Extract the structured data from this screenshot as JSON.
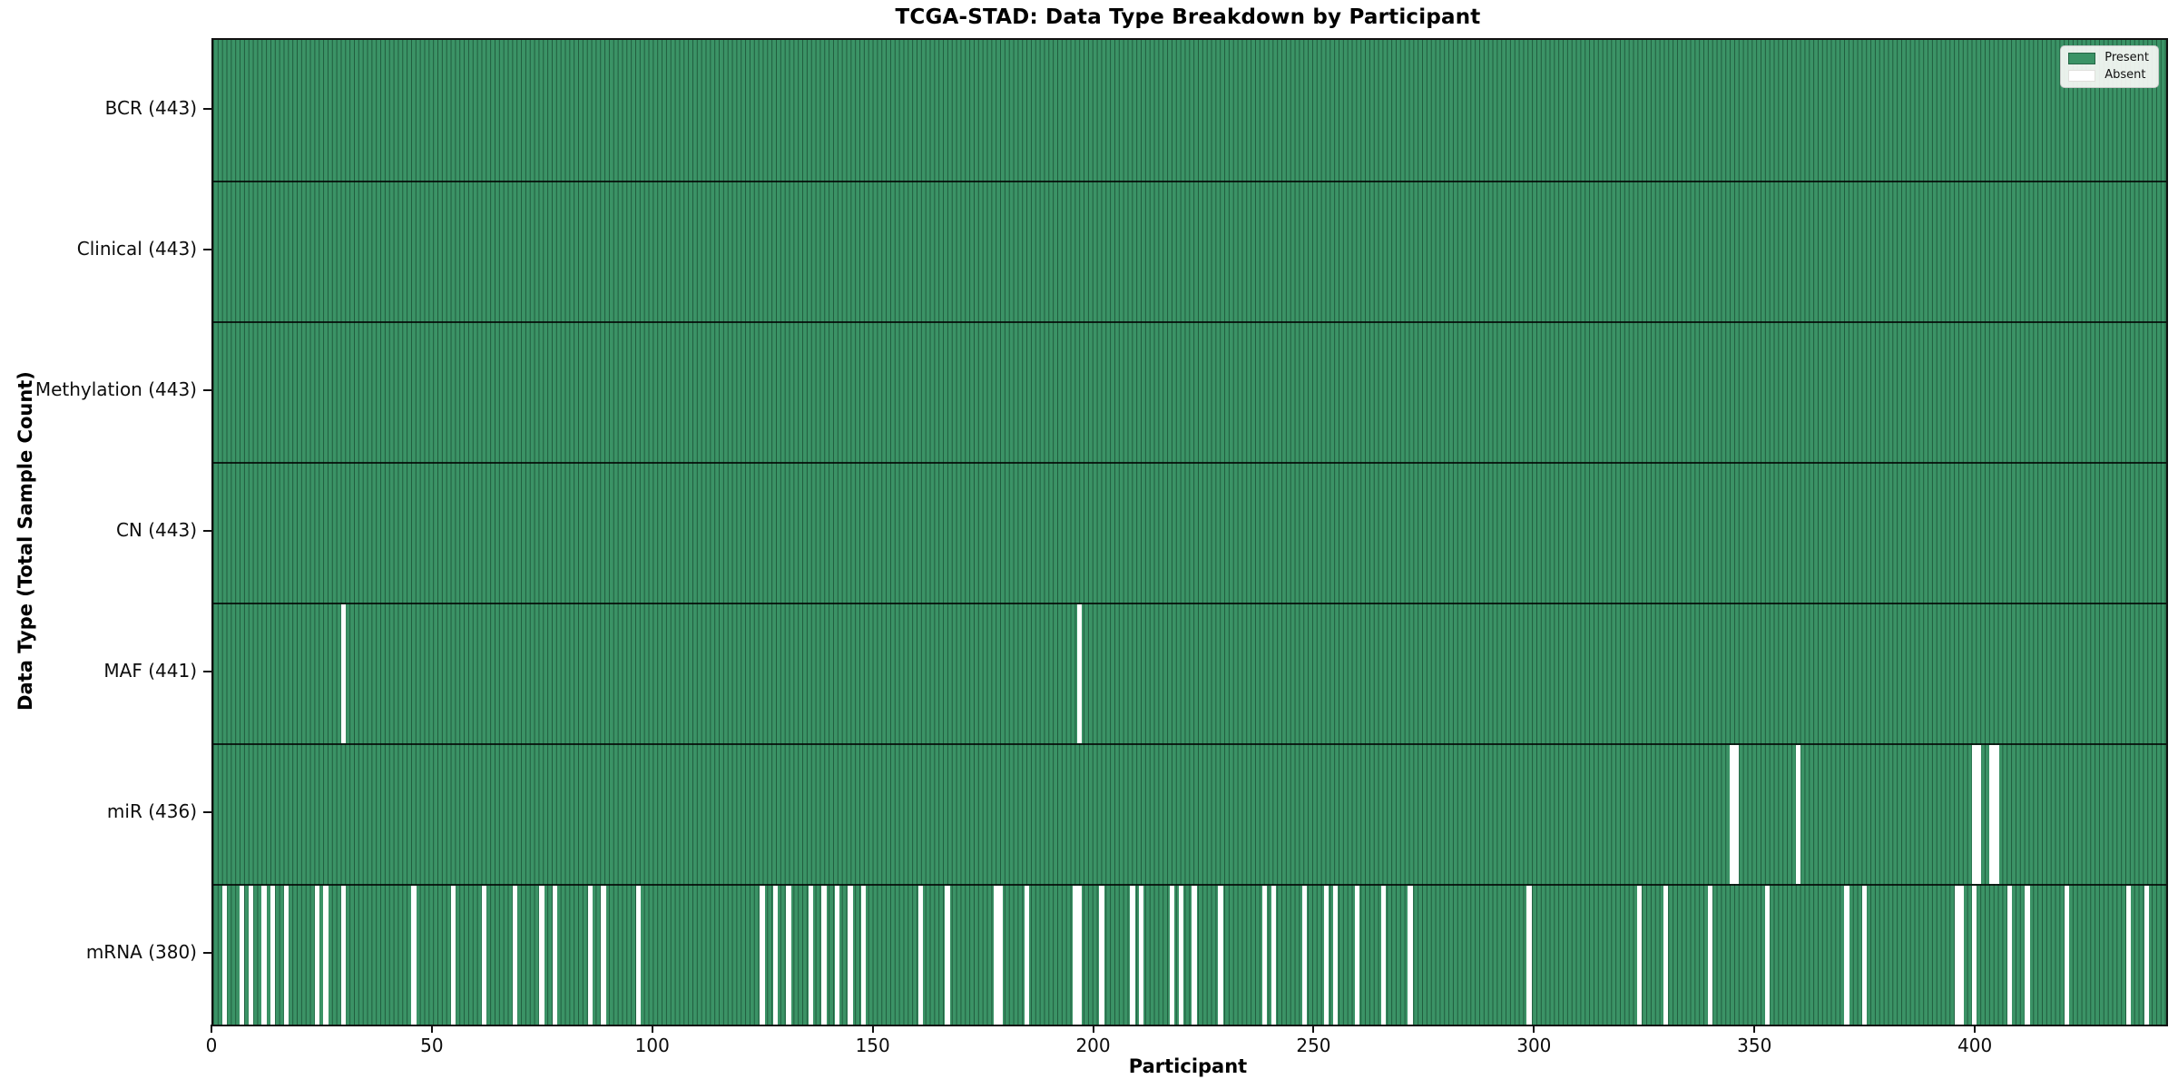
{
  "chart_data": {
    "type": "heatmap",
    "title": "TCGA-STAD: Data Type Breakdown by Participant",
    "xlabel": "Participant",
    "ylabel": "Data Type (Total Sample Count)",
    "n_participants": 443,
    "x_ticks": [
      0,
      50,
      100,
      150,
      200,
      250,
      300,
      350,
      400
    ],
    "grid": false,
    "legend": {
      "position": "upper right",
      "entries": [
        {
          "label": "Present",
          "color": "#3b9366"
        },
        {
          "label": "Absent",
          "color": "#ffffff"
        }
      ]
    },
    "colors": {
      "present": "#3b9366",
      "absent": "#ffffff",
      "cell_edge": "rgba(10,46,28,0.55)",
      "row_separator": "rgba(0,0,0,0.78)"
    },
    "rows": [
      {
        "label": "BCR (443)",
        "name": "bcr",
        "present_count": 443,
        "absent": []
      },
      {
        "label": "Clinical (443)",
        "name": "clinical",
        "present_count": 443,
        "absent": []
      },
      {
        "label": "Methylation (443)",
        "name": "methylation",
        "present_count": 443,
        "absent": []
      },
      {
        "label": "CN (443)",
        "name": "cn",
        "present_count": 443,
        "absent": []
      },
      {
        "label": "MAF (441)",
        "name": "maf",
        "present_count": 441,
        "absent": [
          29,
          196
        ]
      },
      {
        "label": "miR (436)",
        "name": "mir",
        "present_count": 436,
        "absent": [
          344,
          345,
          359,
          399,
          400,
          403,
          404
        ]
      },
      {
        "label": "mRNA (380)",
        "name": "mrna",
        "present_count": 380,
        "absent": [
          2,
          6,
          8,
          11,
          13,
          16,
          23,
          25,
          29,
          45,
          54,
          61,
          68,
          74,
          77,
          85,
          88,
          96,
          124,
          127,
          130,
          135,
          138,
          141,
          144,
          147,
          160,
          166,
          177,
          178,
          184,
          195,
          196,
          201,
          208,
          210,
          217,
          219,
          222,
          228,
          238,
          240,
          247,
          252,
          254,
          259,
          265,
          271,
          298,
          323,
          329,
          339,
          352,
          370,
          374,
          395,
          396,
          399,
          407,
          411,
          420,
          434,
          438
        ]
      }
    ]
  }
}
